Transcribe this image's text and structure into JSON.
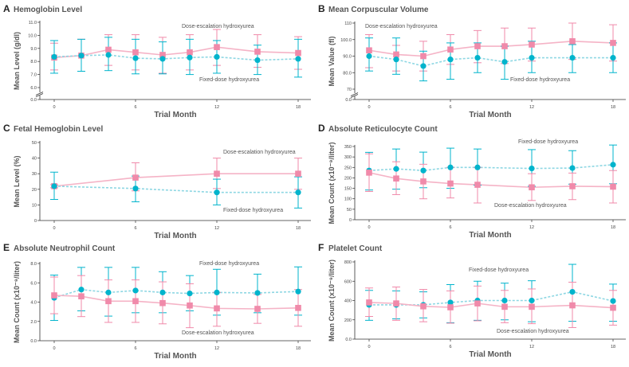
{
  "colors": {
    "dose_escalation": "#f08aaa",
    "dose_escalation_line": "#f5b3c6",
    "fixed_dose": "#00b4cc",
    "fixed_dose_line": "#8ed7e3",
    "axis": "#333333",
    "title": "#555555"
  },
  "chart_data": [
    {
      "letter": "A",
      "title": "Hemoglobin Level",
      "type": "line",
      "xlabel": "Trial Month",
      "ylabel": "Mean Level (g/dl)",
      "xticks": [
        0,
        6,
        12,
        18
      ],
      "xlim": [
        0,
        18
      ],
      "ylim": [
        6,
        11
      ],
      "yticks": [
        "6.0",
        "7.0",
        "8.0",
        "9.0",
        "10.0",
        "11.0"
      ],
      "axis_break": true,
      "break_label": "0.0",
      "series": [
        {
          "name": "Dose-escalation hydroxyurea",
          "marker": "square",
          "x": [
            0,
            2,
            4,
            6,
            8,
            10,
            12,
            15,
            18
          ],
          "y": [
            8.3,
            8.45,
            8.9,
            8.7,
            8.5,
            8.7,
            9.1,
            8.75,
            8.65
          ],
          "lower": [
            7.35,
            7.25,
            7.7,
            7.35,
            7.1,
            7.35,
            7.7,
            7.55,
            7.4
          ],
          "upper": [
            9.4,
            9.7,
            10.05,
            10.05,
            9.85,
            10.05,
            10.45,
            10.05,
            9.9
          ]
        },
        {
          "name": "Fixed-dose hydroxyurea",
          "marker": "circle",
          "x": [
            0,
            2,
            4,
            6,
            8,
            10,
            12,
            15,
            18
          ],
          "y": [
            8.35,
            8.45,
            8.5,
            8.25,
            8.2,
            8.3,
            8.35,
            8.1,
            8.2
          ],
          "lower": [
            7.1,
            7.25,
            7.3,
            7.05,
            7.05,
            7.0,
            7.1,
            7.0,
            6.8
          ],
          "upper": [
            9.6,
            9.7,
            9.85,
            9.7,
            9.5,
            9.7,
            9.6,
            9.25,
            9.7
          ]
        }
      ]
    },
    {
      "letter": "B",
      "title": "Mean Corpuscular Volume",
      "type": "line",
      "xlabel": "Trial Month",
      "ylabel": "Mean Value (fl)",
      "xticks": [
        0,
        6,
        12,
        18
      ],
      "xlim": [
        0,
        18
      ],
      "ylim": [
        70,
        110
      ],
      "yticks": [
        "70",
        "80.0",
        "90.0",
        "100.0",
        "110"
      ],
      "axis_break": true,
      "break_label": "0.0",
      "series": [
        {
          "name": "Dose-escalation hydroxyurea",
          "marker": "square",
          "x": [
            0,
            2,
            4,
            6,
            8,
            10,
            12,
            15,
            18
          ],
          "y": [
            93.5,
            91,
            90,
            94,
            96,
            96,
            97,
            99,
            98
          ],
          "lower": [
            83,
            81,
            81,
            85,
            86,
            85.5,
            87,
            88,
            87
          ],
          "upper": [
            103,
            96.5,
            99,
            103,
            105.5,
            107,
            107,
            110,
            109
          ]
        },
        {
          "name": "Fixed-dose hydroxyurea",
          "marker": "circle",
          "x": [
            0,
            2,
            4,
            6,
            8,
            10,
            12,
            15,
            18
          ],
          "y": [
            90,
            88,
            84,
            88,
            89,
            86.5,
            89,
            89,
            89
          ],
          "lower": [
            81,
            79,
            75,
            76,
            80,
            76,
            80,
            80,
            80
          ],
          "upper": [
            101,
            101,
            93,
            98,
            98,
            96,
            99,
            97,
            98
          ]
        }
      ]
    },
    {
      "letter": "C",
      "title": "Fetal Hemoglobin Level",
      "type": "line",
      "xlabel": "Trial Month",
      "ylabel": "Mean Level (%)",
      "xticks": [
        0,
        6,
        12,
        18
      ],
      "xlim": [
        0,
        18
      ],
      "ylim": [
        0,
        50
      ],
      "yticks": [
        "0",
        "10",
        "20",
        "30",
        "40",
        "50"
      ],
      "axis_break": false,
      "series": [
        {
          "name": "Dose-escalation hydroxyurea",
          "marker": "square",
          "x": [
            0,
            6,
            12,
            18
          ],
          "y": [
            22,
            27.5,
            30,
            30
          ],
          "lower": [
            21,
            19,
            20.5,
            20
          ],
          "upper": [
            23,
            37,
            40,
            40
          ]
        },
        {
          "name": "Fixed-dose hydroxyurea",
          "marker": "circle",
          "x": [
            0,
            6,
            12,
            18
          ],
          "y": [
            22,
            20.5,
            18,
            18
          ],
          "lower": [
            13.5,
            12,
            10,
            8
          ],
          "upper": [
            31,
            28.5,
            26.5,
            28
          ]
        }
      ]
    },
    {
      "letter": "D",
      "title": "Absolute Reticulocyte Count",
      "type": "line",
      "xlabel": "Trial Month",
      "ylabel": "Mean Count (x10⁻⁹/liter)",
      "xticks": [
        0,
        6,
        12,
        18
      ],
      "xlim": [
        0,
        18
      ],
      "ylim": [
        0,
        350
      ],
      "yticks": [
        "0",
        "50",
        "100",
        "150",
        "200",
        "250",
        "300",
        "350"
      ],
      "axis_break": false,
      "series": [
        {
          "name": "Fixed-dose hydroxyurea",
          "marker": "circle",
          "x": [
            0,
            2,
            4,
            6,
            8,
            12,
            15,
            18
          ],
          "y": [
            235,
            243,
            235,
            250,
            250,
            245,
            247,
            263
          ],
          "lower": [
            142,
            146,
            153,
            150,
            165,
            160,
            170,
            172
          ],
          "upper": [
            322,
            338,
            323,
            342,
            338,
            335,
            330,
            357
          ]
        },
        {
          "name": "Dose-escalation hydroxyurea",
          "marker": "square",
          "x": [
            0,
            2,
            4,
            6,
            8,
            12,
            15,
            18
          ],
          "y": [
            225,
            197,
            183,
            173,
            167,
            155,
            160,
            158
          ],
          "lower": [
            135,
            120,
            100,
            104,
            80,
            92,
            96,
            80
          ],
          "upper": [
            315,
            277,
            265,
            250,
            250,
            220,
            223,
            235
          ]
        }
      ]
    },
    {
      "letter": "E",
      "title": "Absolute Neutrophil Count",
      "type": "line",
      "xlabel": "Trial Month",
      "ylabel": "Mean Count (x10⁻⁹/liter)",
      "xticks": [
        0,
        6,
        12,
        18
      ],
      "xlim": [
        0,
        18
      ],
      "ylim": [
        0,
        8
      ],
      "yticks": [
        "0.0",
        "2.0",
        "4.0",
        "6.0",
        "8.0"
      ],
      "axis_break": false,
      "series": [
        {
          "name": "Fixed-dose hydroxyurea",
          "marker": "circle",
          "x": [
            0,
            2,
            4,
            6,
            8,
            10,
            12,
            15,
            18
          ],
          "y": [
            4.45,
            5.3,
            5.0,
            5.2,
            5.0,
            4.9,
            5.0,
            4.95,
            5.1
          ],
          "lower": [
            2.1,
            3.1,
            2.55,
            2.9,
            2.9,
            3.1,
            2.65,
            2.9,
            2.65
          ],
          "upper": [
            6.8,
            7.6,
            7.6,
            7.6,
            7.15,
            6.75,
            7.4,
            6.9,
            7.65
          ]
        },
        {
          "name": "Dose-escalation hydroxyurea",
          "marker": "square",
          "x": [
            0,
            2,
            4,
            6,
            8,
            10,
            12,
            15,
            18
          ],
          "y": [
            4.7,
            4.6,
            4.1,
            4.1,
            3.9,
            3.65,
            3.35,
            3.3,
            3.4
          ],
          "lower": [
            2.8,
            2.5,
            1.9,
            1.9,
            1.75,
            1.35,
            1.5,
            1.8,
            1.5
          ],
          "upper": [
            6.6,
            6.75,
            6.3,
            6.3,
            6.1,
            5.9,
            5.0,
            4.8,
            5.3
          ]
        }
      ]
    },
    {
      "letter": "F",
      "title": "Platelet Count",
      "type": "line",
      "xlabel": "Trial Month",
      "ylabel": "Mean Count (x10⁻⁹/liter)",
      "xticks": [
        0,
        6,
        12,
        18
      ],
      "xlim": [
        0,
        18
      ],
      "ylim": [
        0,
        800
      ],
      "yticks": [
        "0.0",
        "200",
        "400",
        "600",
        "800"
      ],
      "axis_break": false,
      "series": [
        {
          "name": "Fixed-dose hydroxyurea",
          "marker": "circle",
          "x": [
            0,
            2,
            4,
            6,
            8,
            10,
            12,
            15,
            18
          ],
          "y": [
            355,
            355,
            355,
            380,
            400,
            400,
            400,
            490,
            395
          ],
          "lower": [
            195,
            210,
            220,
            170,
            195,
            200,
            180,
            185,
            185
          ],
          "upper": [
            505,
            500,
            490,
            565,
            600,
            580,
            605,
            775,
            570
          ]
        },
        {
          "name": "Dose-escalation hydroxyurea",
          "marker": "square",
          "x": [
            0,
            2,
            4,
            6,
            8,
            10,
            12,
            15,
            18
          ],
          "y": [
            380,
            370,
            340,
            330,
            370,
            335,
            335,
            350,
            325
          ],
          "lower": [
            235,
            195,
            180,
            165,
            190,
            170,
            160,
            120,
            145
          ],
          "upper": [
            530,
            540,
            515,
            500,
            550,
            505,
            520,
            590,
            505
          ]
        }
      ]
    }
  ]
}
